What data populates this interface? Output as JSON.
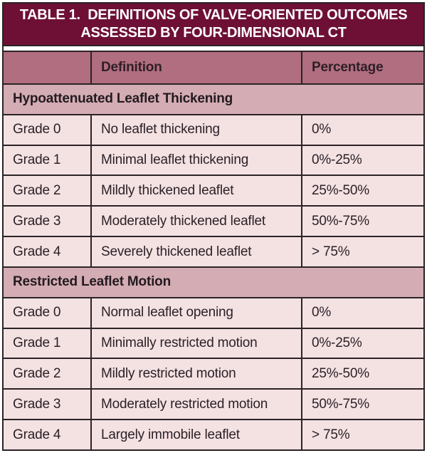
{
  "table": {
    "title_line1": "TABLE 1.  DEFINITIONS OF VALVE-ORIENTED OUTCOMES",
    "title_line2": "ASSESSED BY FOUR-DIMENSIONAL CT",
    "columns": [
      "",
      "Definition",
      "Percentage"
    ],
    "sections": [
      {
        "header": "Hypoattenuated Leaflet Thickening",
        "rows": [
          [
            "Grade 0",
            "No leaflet thickening",
            "0%"
          ],
          [
            "Grade 1",
            "Minimal leaflet thickening",
            "0%-25%"
          ],
          [
            "Grade 2",
            "Mildly thickened leaflet",
            "25%-50%"
          ],
          [
            "Grade 3",
            "Moderately thickened leaflet",
            "50%-75%"
          ],
          [
            "Grade 4",
            "Severely thickened leaflet",
            "> 75%"
          ]
        ]
      },
      {
        "header": "Restricted Leaflet Motion",
        "rows": [
          [
            "Grade 0",
            "Normal leaflet opening",
            "0%"
          ],
          [
            "Grade 1",
            "Minimally restricted motion",
            "0%-25%"
          ],
          [
            "Grade 2",
            "Mildly restricted motion",
            "25%-50%"
          ],
          [
            "Grade 3",
            "Moderately restricted motion",
            "50%-75%"
          ],
          [
            "Grade 4",
            "Largely immobile leaflet",
            "> 75%"
          ]
        ]
      }
    ],
    "colors": {
      "title_bg": "#6e1036",
      "title_text": "#ffffff",
      "column_header_bg": "#b16e80",
      "section_header_bg": "#d3acb4",
      "row_bg": "#f4e2e3",
      "text": "#2b2127",
      "border": "#2b2326"
    }
  }
}
